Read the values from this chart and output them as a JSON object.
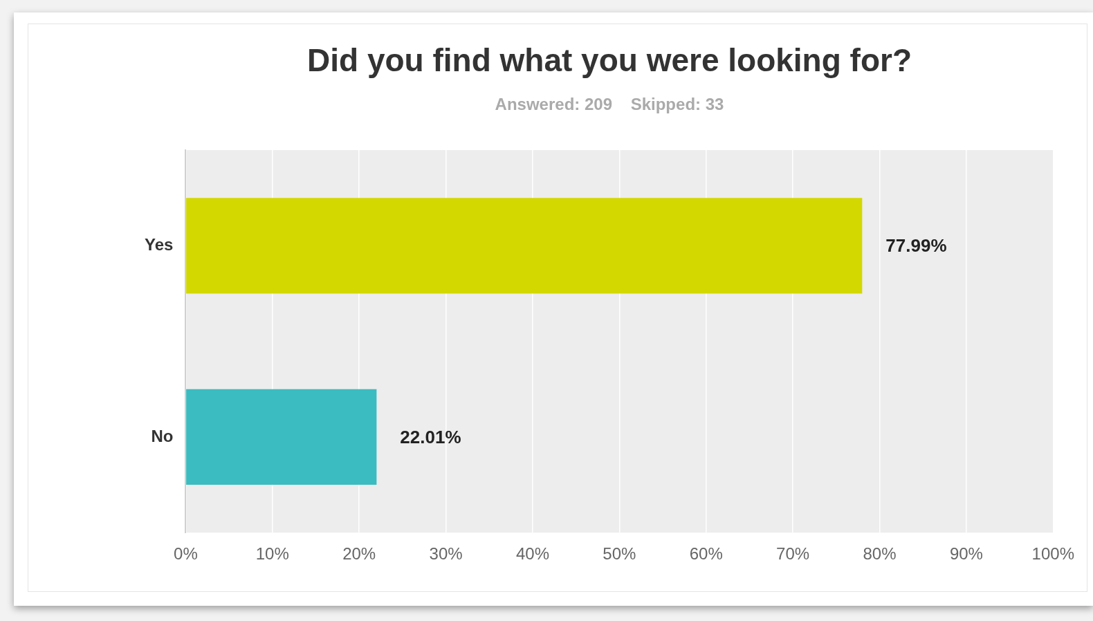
{
  "chart_data": {
    "type": "bar",
    "orientation": "horizontal",
    "title": "Did you find what you were looking for?",
    "subtitle": "Answered: 209    Skipped: 33",
    "categories": [
      "Yes",
      "No"
    ],
    "values": [
      77.99,
      22.01
    ],
    "colors": [
      "#d3d800",
      "#3bbcc0"
    ],
    "value_labels": [
      "77.99%",
      "22.01%"
    ],
    "xlim": [
      0,
      100
    ],
    "xticks": [
      {
        "value": 0,
        "label": "0%"
      },
      {
        "value": 10,
        "label": "10%"
      },
      {
        "value": 20,
        "label": "20%"
      },
      {
        "value": 30,
        "label": "30%"
      },
      {
        "value": 40,
        "label": "40%"
      },
      {
        "value": 50,
        "label": "50%"
      },
      {
        "value": 60,
        "label": "60%"
      },
      {
        "value": 70,
        "label": "70%"
      },
      {
        "value": 80,
        "label": "80%"
      },
      {
        "value": 90,
        "label": "90%"
      },
      {
        "value": 100,
        "label": "100%"
      }
    ],
    "grid": "x",
    "legend": false
  }
}
